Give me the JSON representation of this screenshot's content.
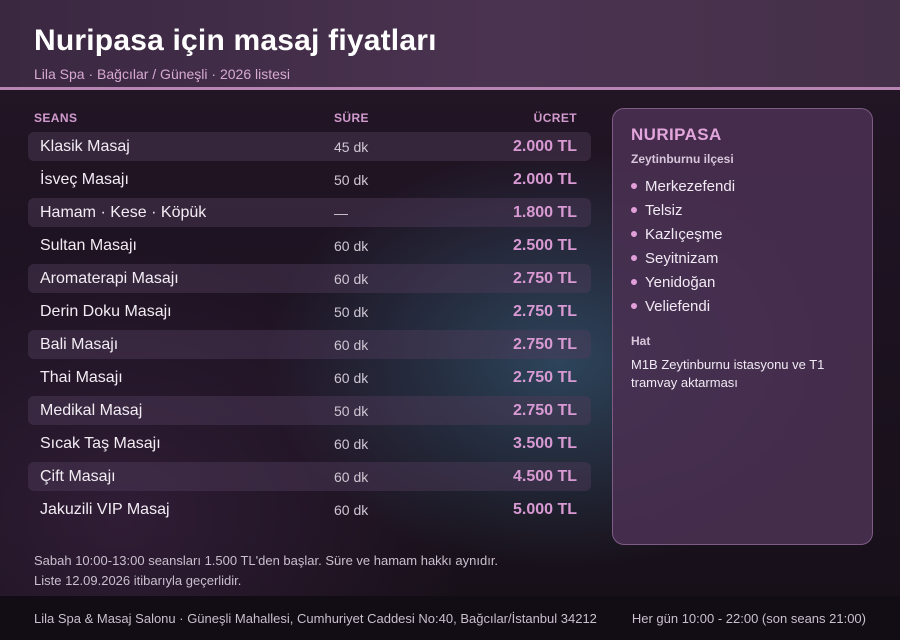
{
  "header": {
    "title": "Nuripasa için masaj fiyatları",
    "subtitle": "Lila Spa · Bağcılar / Güneşli · 2026 listesi"
  },
  "table": {
    "columns": {
      "name": "SEANS",
      "duration": "SÜRE",
      "price": "ÜCRET"
    },
    "rows": [
      {
        "name": "Klasik Masaj",
        "duration": "45 dk",
        "price": "2.000 TL"
      },
      {
        "name": "İsveç Masajı",
        "duration": "50 dk",
        "price": "2.000 TL"
      },
      {
        "name": "Hamam · Kese · Köpük",
        "duration": "—",
        "price": "1.800 TL"
      },
      {
        "name": "Sultan Masajı",
        "duration": "60 dk",
        "price": "2.500 TL"
      },
      {
        "name": "Aromaterapi Masajı",
        "duration": "60 dk",
        "price": "2.750 TL"
      },
      {
        "name": "Derin Doku Masajı",
        "duration": "50 dk",
        "price": "2.750 TL"
      },
      {
        "name": "Bali Masajı",
        "duration": "60 dk",
        "price": "2.750 TL"
      },
      {
        "name": "Thai Masajı",
        "duration": "60 dk",
        "price": "2.750 TL"
      },
      {
        "name": "Medikal Masaj",
        "duration": "50 dk",
        "price": "2.750 TL"
      },
      {
        "name": "Sıcak Taş Masajı",
        "duration": "60 dk",
        "price": "3.500 TL"
      },
      {
        "name": "Çift Masajı",
        "duration": "60 dk",
        "price": "4.500 TL"
      },
      {
        "name": "Jakuzili VIP Masaj",
        "duration": "60 dk",
        "price": "5.000 TL"
      }
    ]
  },
  "panel": {
    "title": "NURIPASA",
    "subtitle": "Zeytinburnu ilçesi",
    "neighborhoods": [
      "Merkezefendi",
      "Telsiz",
      "Kazlıçeşme",
      "Seyitnizam",
      "Yenidoğan",
      "Veliefendi"
    ],
    "line_label": "Hat",
    "line_text": "M1B Zeytinburnu istasyonu ve T1 tramvay aktarması"
  },
  "note": {
    "line1": "Sabah 10:00-13:00 seansları 1.500 TL'den başlar. Süre ve hamam hakkı aynıdır.",
    "line2": "Liste 12.09.2026 itibarıyla geçerlidir."
  },
  "footer": {
    "address": "Lila Spa & Masaj Salonu · Güneşli Mahallesi, Cumhuriyet Caddesi No:40, Bağcılar/İstanbul 34212",
    "hours": "Her gün 10:00 - 22:00 (son seans 21:00)"
  },
  "colors": {
    "accent": "#d99ad4",
    "header_border": "#b784b4",
    "panel_bg": "#4a3052"
  }
}
